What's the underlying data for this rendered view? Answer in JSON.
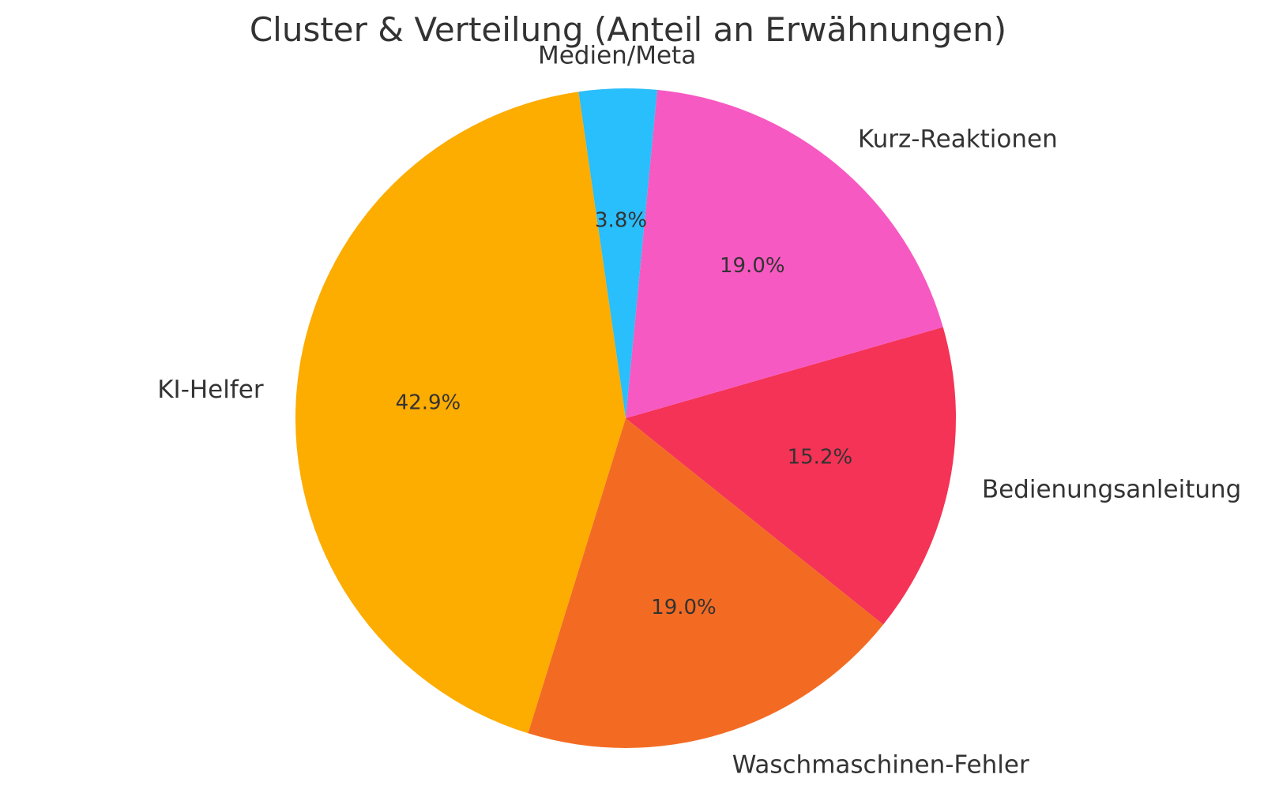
{
  "chart_data": {
    "type": "pie",
    "title": "Cluster & Verteilung (Anteil an Erwähnungen)",
    "categories": [
      "Waschmaschinen-Fehler",
      "Bedienungsanleitung",
      "Kurz-Reaktionen",
      "Medien/Meta",
      "KI-Helfer"
    ],
    "values": [
      19.0,
      15.2,
      19.0,
      3.8,
      42.9
    ],
    "value_labels": [
      "19.0%",
      "15.2%",
      "19.0%",
      "3.8%",
      "42.9%"
    ],
    "colors": [
      "#F36B23",
      "#F43356",
      "#F759C2",
      "#29BEFC",
      "#FDAC00"
    ],
    "start_angle_degrees": -107.2,
    "direction": "counterclockwise",
    "legend": "none"
  }
}
